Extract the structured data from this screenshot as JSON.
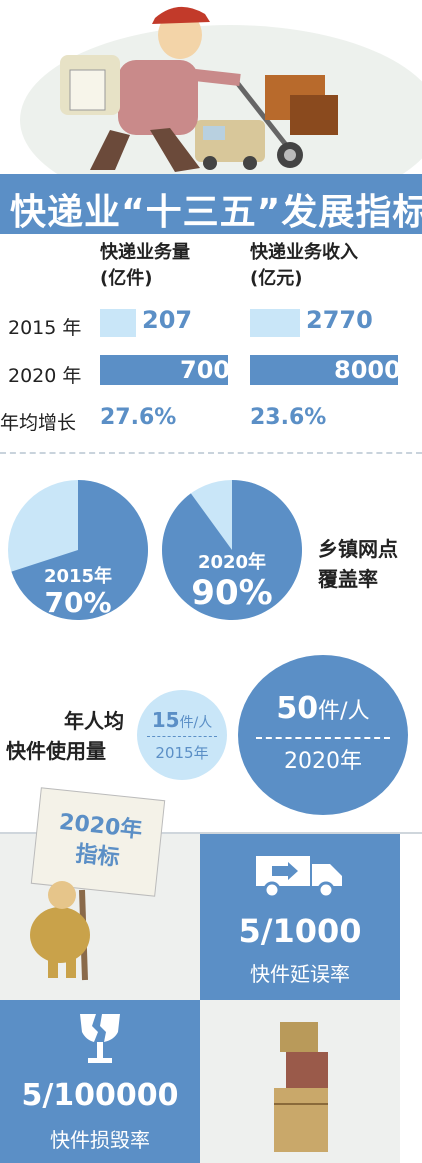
{
  "header": {
    "title": "快递业“十三五”发展指标"
  },
  "table": {
    "col1": {
      "line1": "快递业务量",
      "line2": "(亿件)"
    },
    "col2": {
      "line1": "快递业务收入",
      "line2": "(亿元)"
    },
    "rows": [
      {
        "label": "2015 年",
        "v1": "207",
        "v2": "2770"
      },
      {
        "label": "2020 年",
        "v1": "700",
        "v2": "8000"
      }
    ],
    "growth": {
      "label": "年均增长",
      "v1": "27.6%",
      "v2": "23.6%"
    }
  },
  "coverage": {
    "label_line1": "乡镇网点",
    "label_line2": "覆盖率",
    "pie2015": {
      "year": "2015年",
      "value": "70%",
      "fraction": 0.7
    },
    "pie2020": {
      "year": "2020年",
      "value": "90%",
      "fraction": 0.9
    }
  },
  "percapita": {
    "label_line1": "年人均",
    "label_line2": "快件使用量",
    "small": {
      "num": "15",
      "unit": "件/人",
      "year": "2015年"
    },
    "big": {
      "num": "50",
      "unit": "件/人",
      "year": "2020年"
    }
  },
  "indicators": {
    "sign_line1": "2020年",
    "sign_line2": "指标",
    "delay": {
      "value": "5/1000",
      "caption": "快件延误率"
    },
    "damage": {
      "value": "5/100000",
      "caption": "快件损毁率"
    }
  },
  "chart_data": [
    {
      "type": "bar",
      "categories": [
        "2015 年",
        "2020 年"
      ],
      "series": [
        {
          "name": "快递业务量 (亿件)",
          "values": [
            207,
            700
          ]
        },
        {
          "name": "快递业务收入 (亿元)",
          "values": [
            2770,
            8000
          ]
        }
      ]
    },
    {
      "type": "pie",
      "title": "乡镇网点覆盖率",
      "categories": [
        "2015年",
        "2020年"
      ],
      "values": [
        70,
        90
      ]
    }
  ],
  "colors": {
    "blue": "#5b8fc6",
    "light_blue": "#c9e6f8",
    "grey": "#eef0ee"
  }
}
